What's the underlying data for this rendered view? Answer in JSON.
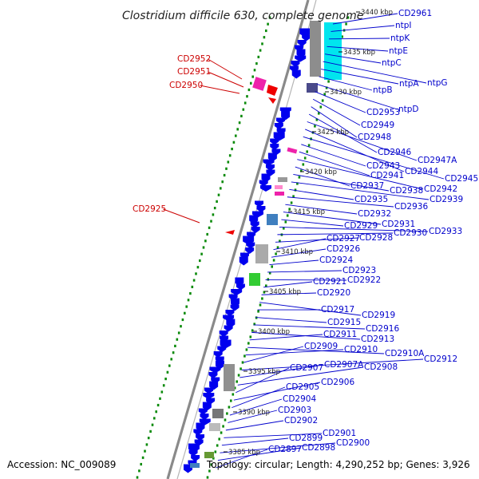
{
  "title": "Clostridium difficile 630, complete genome",
  "footer": {
    "accession": "Accession: NC_009089",
    "stats": "Topology: circular; Length: 4,290,252 bp; Genes: 3,926"
  },
  "colors": {
    "forward_gene": "#0000ee",
    "reverse_gene": "#ee0000",
    "label_blue": "#0000cc",
    "label_red": "#cc0000",
    "backbone": "#8a8a8a",
    "dotted_track": "#0a8a0a",
    "cyan_feature": "#00e5ee",
    "magenta_feature": "#ee22aa"
  },
  "scale_labels": [
    "3440 kbp",
    "3435 kbp",
    "3430 kbp",
    "3425 kbp",
    "3420 kbp",
    "3415 kbp",
    "3410 kbp",
    "3405 kbp",
    "3400 kbp",
    "3395 kbp",
    "3390 kbp",
    "3385 kbp"
  ],
  "reverse_labels": [
    "CD2952",
    "CD2951",
    "CD2950",
    "CD2925"
  ],
  "forward_labels": [
    "CD2961",
    "ntpI",
    "ntpK",
    "ntpE",
    "ntpC",
    "ntpG",
    "ntpA",
    "ntpB",
    "ntpD",
    "CD2953",
    "CD2949",
    "CD2948",
    "CD2946",
    "CD2947A",
    "CD2944",
    "CD2945",
    "CD2943",
    "CD2941",
    "CD2942",
    "CD2937",
    "CD2938",
    "CD2939",
    "CD2935",
    "CD2936",
    "CD2932",
    "CD2931",
    "CD2929",
    "CD2933",
    "CD2930",
    "CD2928",
    "CD2927",
    "CD2926",
    "CD2924",
    "CD2923",
    "CD2922",
    "CD2921",
    "CD2920",
    "CD2919",
    "CD2917",
    "CD2915",
    "CD2916",
    "CD2913",
    "CD2911",
    "CD2910A",
    "CD2910",
    "CD2909",
    "CD2912",
    "CD2907A",
    "CD2908",
    "CD2907",
    "CD2906",
    "CD2905",
    "CD2904",
    "CD2903",
    "CD2902",
    "CD2901",
    "CD2899",
    "CD2900",
    "CD2898",
    "CD2897"
  ]
}
